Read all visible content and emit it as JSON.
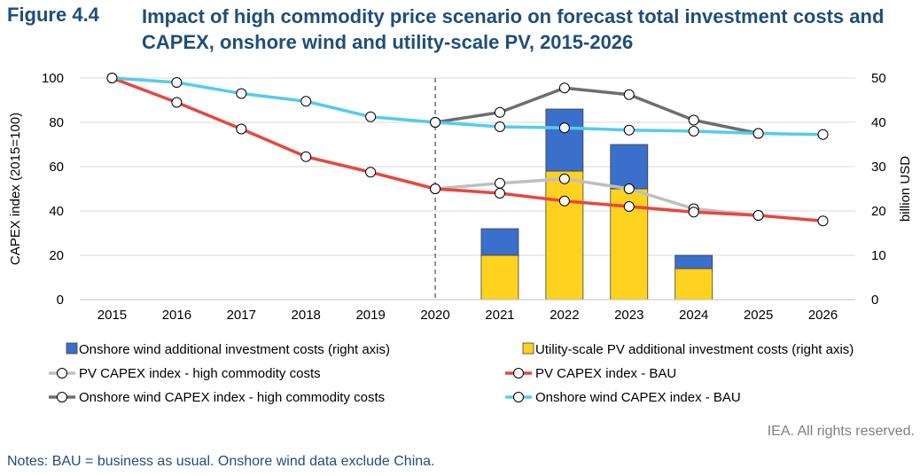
{
  "figure_label": "Figure 4.4",
  "title": "Impact of high commodity price scenario on forecast total investment costs and CAPEX, onshore wind and utility-scale PV, 2015-2026",
  "copyright": "IEA. All rights reserved.",
  "notes": "Notes: BAU = business as usual. Onshore wind data exclude China.",
  "chart_data": {
    "type": "bar+line",
    "categories": [
      "2015",
      "2016",
      "2017",
      "2018",
      "2019",
      "2020",
      "2021",
      "2022",
      "2023",
      "2024",
      "2025",
      "2026"
    ],
    "ylabel_left": "CAPEX index (2015=100)",
    "ylabel_right": "billion USD",
    "ylim_left": [
      0,
      100
    ],
    "ylim_right": [
      0,
      50
    ],
    "yticks_left": [
      0,
      20,
      40,
      60,
      80,
      100
    ],
    "yticks_right": [
      0,
      10,
      20,
      30,
      40,
      50
    ],
    "vertical_marker_category": "2020",
    "grid": true,
    "legend_position": "bottom",
    "bars": [
      {
        "name": "Utility-scale PV additional investment costs (right axis)",
        "axis": "right",
        "color": "#ffd21f",
        "values": [
          null,
          null,
          null,
          null,
          null,
          null,
          10,
          29,
          25,
          7,
          null,
          null
        ]
      },
      {
        "name": "Onshore wind additional investment costs (right axis)",
        "axis": "right",
        "color": "#3b6fcc",
        "values": [
          null,
          null,
          null,
          null,
          null,
          null,
          6,
          14,
          10,
          3,
          null,
          null
        ]
      }
    ],
    "lines": [
      {
        "name": "PV CAPEX index - high commodity costs",
        "axis": "left",
        "color": "#bfbfbf",
        "values": [
          null,
          null,
          null,
          null,
          null,
          50,
          52.5,
          54.5,
          50,
          41,
          38,
          null
        ]
      },
      {
        "name": "PV CAPEX index - BAU",
        "axis": "left",
        "color": "#e8473f",
        "values": [
          100,
          89,
          77,
          64.5,
          57.5,
          50,
          48,
          44.5,
          42,
          39.5,
          38,
          35.5
        ]
      },
      {
        "name": "Onshore wind CAPEX index - high commodity costs",
        "axis": "left",
        "color": "#6e6e6e",
        "values": [
          null,
          null,
          null,
          null,
          null,
          80,
          84.5,
          95.5,
          92.5,
          81,
          75,
          null
        ]
      },
      {
        "name": "Onshore wind CAPEX index - BAU",
        "axis": "left",
        "color": "#55cbf0",
        "values": [
          100,
          98,
          93,
          89.5,
          82.5,
          80,
          78,
          77.5,
          76.5,
          76,
          75,
          74.5
        ]
      }
    ]
  }
}
